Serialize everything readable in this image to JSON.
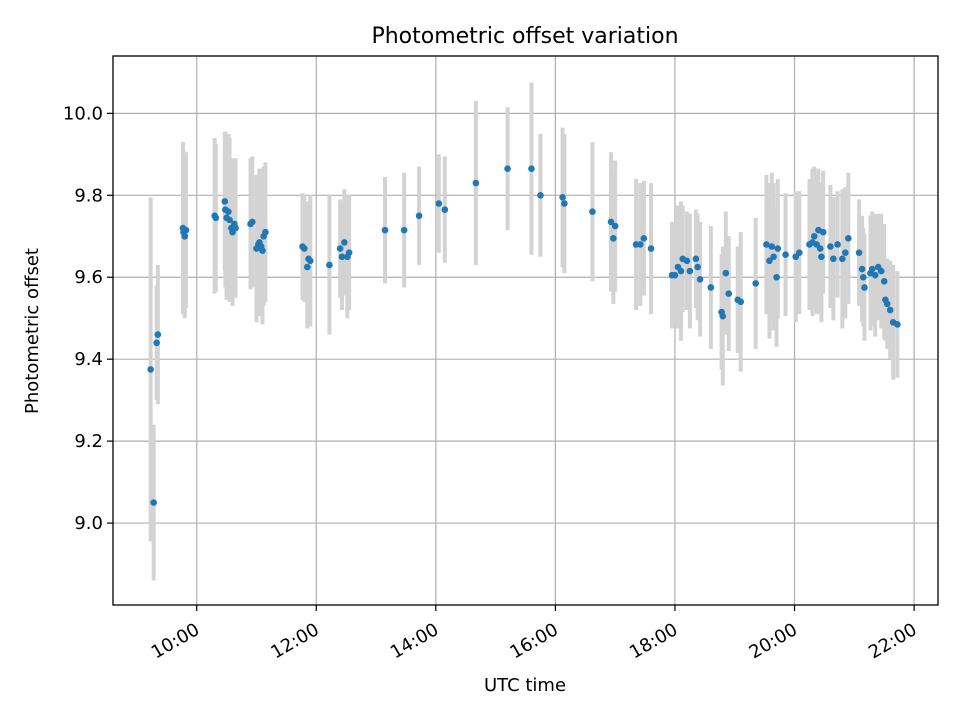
{
  "chart_data": {
    "type": "scatter",
    "title": "Photometric offset variation",
    "xlabel": "UTC time",
    "ylabel": "Photometric offset",
    "x_unit": "hours UTC",
    "xlim": [
      8.6,
      22.4
    ],
    "ylim": [
      8.8,
      10.14
    ],
    "x_ticks": [
      {
        "value": 10,
        "label": "10:00"
      },
      {
        "value": 12,
        "label": "12:00"
      },
      {
        "value": 14,
        "label": "14:00"
      },
      {
        "value": 16,
        "label": "16:00"
      },
      {
        "value": 18,
        "label": "18:00"
      },
      {
        "value": 20,
        "label": "20:00"
      },
      {
        "value": 22,
        "label": "22:00"
      }
    ],
    "y_ticks": [
      {
        "value": 9.0,
        "label": "9.0"
      },
      {
        "value": 9.2,
        "label": "9.2"
      },
      {
        "value": 9.4,
        "label": "9.4"
      },
      {
        "value": 9.6,
        "label": "9.6"
      },
      {
        "value": 9.8,
        "label": "9.8"
      },
      {
        "value": 10.0,
        "label": "10.0"
      }
    ],
    "grid": true,
    "colors": {
      "marker": "#1f77b4",
      "errorbar": "#d3d3d3",
      "grid": "#b0b0b0"
    },
    "points": [
      [
        9.23,
        9.375,
        0.42
      ],
      [
        9.28,
        9.05,
        0.19
      ],
      [
        9.33,
        9.44,
        0.14
      ],
      [
        9.35,
        9.46,
        0.17
      ],
      [
        9.77,
        9.72,
        0.21
      ],
      [
        9.78,
        9.71,
        0.2
      ],
      [
        9.8,
        9.7,
        0.2
      ],
      [
        9.82,
        9.715,
        0.19
      ],
      [
        10.3,
        9.75,
        0.19
      ],
      [
        10.32,
        9.745,
        0.18
      ],
      [
        10.47,
        9.785,
        0.17
      ],
      [
        10.48,
        9.765,
        0.19
      ],
      [
        10.5,
        9.745,
        0.2
      ],
      [
        10.53,
        9.76,
        0.19
      ],
      [
        10.55,
        9.74,
        0.2
      ],
      [
        10.58,
        9.72,
        0.17
      ],
      [
        10.6,
        9.71,
        0.18
      ],
      [
        10.63,
        9.73,
        0.16
      ],
      [
        10.65,
        9.72,
        0.17
      ],
      [
        10.9,
        9.73,
        0.16
      ],
      [
        10.93,
        9.735,
        0.16
      ],
      [
        11.0,
        9.67,
        0.18
      ],
      [
        11.03,
        9.68,
        0.17
      ],
      [
        11.05,
        9.685,
        0.18
      ],
      [
        11.08,
        9.675,
        0.17
      ],
      [
        11.1,
        9.665,
        0.18
      ],
      [
        11.12,
        9.7,
        0.17
      ],
      [
        11.15,
        9.71,
        0.17
      ],
      [
        11.77,
        9.675,
        0.13
      ],
      [
        11.8,
        9.67,
        0.13
      ],
      [
        11.85,
        9.625,
        0.15
      ],
      [
        11.87,
        9.645,
        0.14
      ],
      [
        11.9,
        9.64,
        0.16
      ],
      [
        12.22,
        9.63,
        0.17
      ],
      [
        12.4,
        9.67,
        0.12
      ],
      [
        12.43,
        9.65,
        0.13
      ],
      [
        12.47,
        9.685,
        0.13
      ],
      [
        12.52,
        9.65,
        0.15
      ],
      [
        12.55,
        9.66,
        0.14
      ],
      [
        13.15,
        9.715,
        0.13
      ],
      [
        13.47,
        9.715,
        0.14
      ],
      [
        13.72,
        9.75,
        0.12
      ],
      [
        14.05,
        9.78,
        0.12
      ],
      [
        14.15,
        9.765,
        0.13
      ],
      [
        14.67,
        9.83,
        0.2
      ],
      [
        15.2,
        9.865,
        0.15
      ],
      [
        15.6,
        9.865,
        0.21
      ],
      [
        15.75,
        9.8,
        0.15
      ],
      [
        16.12,
        9.795,
        0.17
      ],
      [
        16.15,
        9.78,
        0.17
      ],
      [
        16.62,
        9.76,
        0.17
      ],
      [
        16.93,
        9.735,
        0.17
      ],
      [
        16.97,
        9.695,
        0.16
      ],
      [
        17.0,
        9.725,
        0.16
      ],
      [
        17.35,
        9.68,
        0.16
      ],
      [
        17.42,
        9.68,
        0.15
      ],
      [
        17.48,
        9.695,
        0.14
      ],
      [
        17.6,
        9.67,
        0.16
      ],
      [
        17.95,
        9.605,
        0.13
      ],
      [
        18.0,
        9.605,
        0.12
      ],
      [
        18.05,
        9.625,
        0.15
      ],
      [
        18.1,
        9.615,
        0.17
      ],
      [
        18.13,
        9.645,
        0.13
      ],
      [
        18.2,
        9.64,
        0.12
      ],
      [
        18.25,
        9.615,
        0.14
      ],
      [
        18.35,
        9.645,
        0.12
      ],
      [
        18.38,
        9.625,
        0.13
      ],
      [
        18.42,
        9.595,
        0.14
      ],
      [
        18.6,
        9.575,
        0.15
      ],
      [
        18.78,
        9.515,
        0.14
      ],
      [
        18.8,
        9.505,
        0.17
      ],
      [
        18.85,
        9.61,
        0.15
      ],
      [
        18.9,
        9.56,
        0.14
      ],
      [
        19.05,
        9.545,
        0.13
      ],
      [
        19.1,
        9.54,
        0.17
      ],
      [
        19.35,
        9.585,
        0.16
      ],
      [
        19.53,
        9.68,
        0.17
      ],
      [
        19.58,
        9.64,
        0.19
      ],
      [
        19.62,
        9.675,
        0.18
      ],
      [
        19.65,
        9.65,
        0.18
      ],
      [
        19.7,
        9.6,
        0.17
      ],
      [
        19.72,
        9.67,
        0.17
      ],
      [
        19.85,
        9.655,
        0.15
      ],
      [
        20.02,
        9.65,
        0.16
      ],
      [
        20.08,
        9.66,
        0.15
      ],
      [
        20.25,
        9.68,
        0.16
      ],
      [
        20.3,
        9.685,
        0.18
      ],
      [
        20.33,
        9.7,
        0.17
      ],
      [
        20.37,
        9.68,
        0.17
      ],
      [
        20.4,
        9.715,
        0.15
      ],
      [
        20.43,
        9.67,
        0.16
      ],
      [
        20.45,
        9.65,
        0.16
      ],
      [
        20.48,
        9.71,
        0.15
      ],
      [
        20.6,
        9.675,
        0.15
      ],
      [
        20.65,
        9.645,
        0.15
      ],
      [
        20.72,
        9.68,
        0.13
      ],
      [
        20.8,
        9.645,
        0.17
      ],
      [
        20.85,
        9.66,
        0.16
      ],
      [
        20.9,
        9.695,
        0.16
      ],
      [
        21.08,
        9.66,
        0.13
      ],
      [
        21.13,
        9.62,
        0.13
      ],
      [
        21.15,
        9.6,
        0.12
      ],
      [
        21.17,
        9.575,
        0.13
      ],
      [
        21.27,
        9.61,
        0.14
      ],
      [
        21.3,
        9.62,
        0.14
      ],
      [
        21.35,
        9.605,
        0.15
      ],
      [
        21.4,
        9.625,
        0.13
      ],
      [
        21.45,
        9.615,
        0.14
      ],
      [
        21.5,
        9.59,
        0.14
      ],
      [
        21.52,
        9.545,
        0.1
      ],
      [
        21.55,
        9.535,
        0.11
      ],
      [
        21.6,
        9.52,
        0.12
      ],
      [
        21.65,
        9.49,
        0.14
      ],
      [
        21.72,
        9.485,
        0.13
      ]
    ]
  }
}
